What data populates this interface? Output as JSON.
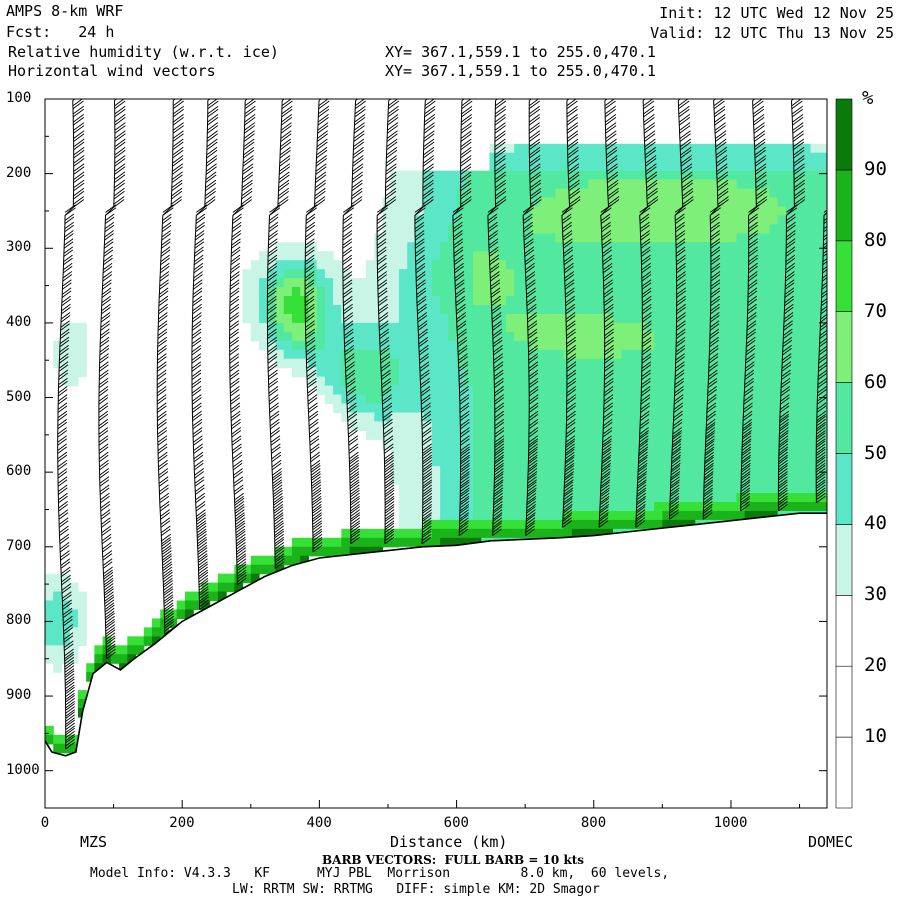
{
  "header": {
    "model": "AMPS 8-km WRF",
    "forecast": "Fcst:   24 h",
    "field1": "Relative humidity (w.r.t. ice)",
    "field2": "Horizontal wind vectors",
    "xy1": "XY= 367.1,559.1 to 255.0,470.1",
    "xy2": "XY= 367.1,559.1 to 255.0,470.1",
    "init": "Init: 12 UTC Wed 12 Nov 25",
    "valid": "Valid: 12 UTC Thu 13 Nov 25"
  },
  "footer": {
    "barb_note": "BARB VECTORS:  FULL BARB = 10 kts",
    "model_info": "Model Info: V4.3.3   KF      MYJ PBL  Morrison         8.0 km,  60 levels,",
    "physics": "LW: RRTM SW: RRTMG   DIFF: simple KM: 2D Smagor",
    "left_site": "MZS",
    "right_site": "DOMEC"
  },
  "colors": {
    "bands": [
      "#ffffff",
      "#ffffff",
      "#ffffff",
      "#c8f5e6",
      "#5ce6c8",
      "#52e8a0",
      "#7ef07a",
      "#36e036",
      "#1ab31a",
      "#0b7a0b"
    ],
    "terrain": "#ffffff",
    "barb": "#000000"
  },
  "chart_data": {
    "type": "heatmap",
    "title": "Relative humidity (w.r.t. ice)",
    "xlabel": "Distance (km)",
    "ylabel": "",
    "xlim": [
      0,
      1140
    ],
    "ylim": [
      1050,
      100
    ],
    "x_ticks": [
      "0",
      "200",
      "400",
      "600",
      "800",
      "1000"
    ],
    "y_ticks": [
      "100",
      "200",
      "300",
      "400",
      "500",
      "600",
      "700",
      "800",
      "900",
      "1000"
    ],
    "colorbar": {
      "unit": "%",
      "levels": [
        0,
        10,
        20,
        30,
        40,
        50,
        60,
        70,
        80,
        90,
        100
      ],
      "tick_labels": [
        "10",
        "20",
        "30",
        "40",
        "50",
        "60",
        "70",
        "80",
        "90"
      ]
    },
    "terrain_surface": {
      "distance_km": [
        0,
        10,
        30,
        45,
        55,
        70,
        90,
        100,
        110,
        130,
        160,
        200,
        240,
        280,
        320,
        360,
        400,
        450,
        500,
        550,
        600,
        650,
        700,
        750,
        800,
        850,
        900,
        950,
        1000,
        1050,
        1100,
        1140
      ],
      "pressure_hpa": [
        960,
        975,
        980,
        975,
        920,
        870,
        855,
        860,
        865,
        850,
        830,
        800,
        780,
        760,
        740,
        725,
        715,
        710,
        705,
        700,
        698,
        692,
        690,
        688,
        685,
        680,
        675,
        670,
        665,
        660,
        655,
        655
      ]
    },
    "wind_barb_columns_km": [
      20,
      80,
      165,
      220,
      275,
      330,
      385,
      440,
      490,
      545,
      600,
      650,
      700,
      755,
      810,
      865,
      915,
      965,
      1020,
      1075,
      1130
    ],
    "grid": false
  }
}
